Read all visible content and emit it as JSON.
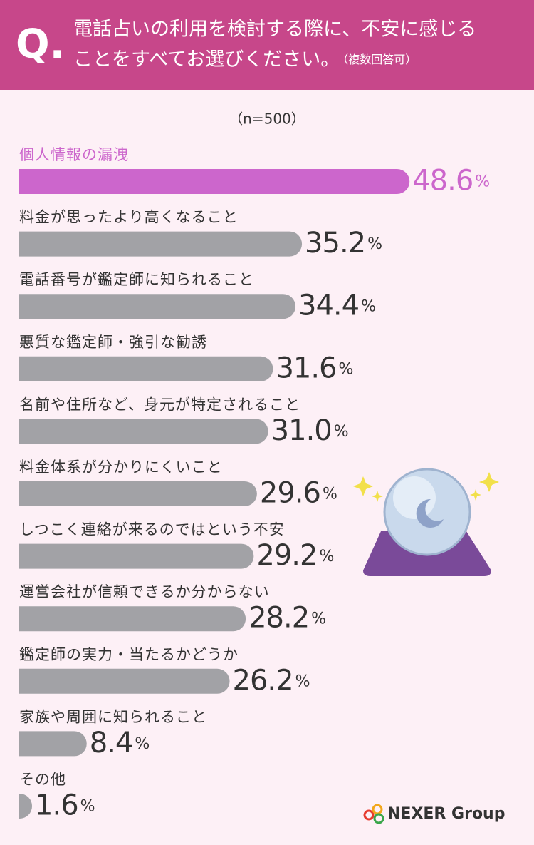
{
  "header": {
    "q": "Q.",
    "title_lines": [
      "電話占いの利用を検討する際に、不安に感じる",
      "ことをすべてお選びください。"
    ],
    "note": "（複数回答可）"
  },
  "chart_data": {
    "type": "hbar",
    "subtitle": "（n=500）",
    "categories": [
      "個人情報の漏洩",
      "料金が思ったより高くなること",
      "電話番号が鑑定師に知られること",
      "悪質な鑑定師・強引な勧誘",
      "名前や住所など、身元が特定されること",
      "料金体系が分かりにくいこと",
      "しつこく連絡が来るのではという不安",
      "運営会社が信頼できるか分からない",
      "鑑定師の実力・当たるかどうか",
      "家族や周囲に知られること",
      "その他"
    ],
    "values": [
      48.6,
      35.2,
      34.4,
      31.6,
      31.0,
      29.6,
      29.2,
      28.2,
      26.2,
      8.4,
      1.6
    ],
    "value_labels": [
      "48.6%",
      "35.2%",
      "34.4%",
      "31.6%",
      "31.0%",
      "29.6%",
      "29.2%",
      "28.2%",
      "26.2%",
      "8.4%",
      "1.6%"
    ],
    "color": "#a2a2a6",
    "colors": [
      "#cc66cc",
      "#a2a2a6",
      "#a2a2a6",
      "#a2a2a6",
      "#a2a2a6",
      "#a2a2a6",
      "#a2a2a6",
      "#a2a2a6",
      "#a2a2a6",
      "#a2a2a6",
      "#a2a2a6"
    ],
    "xlim": [
      0,
      50
    ]
  },
  "logo": "NEXER Group"
}
